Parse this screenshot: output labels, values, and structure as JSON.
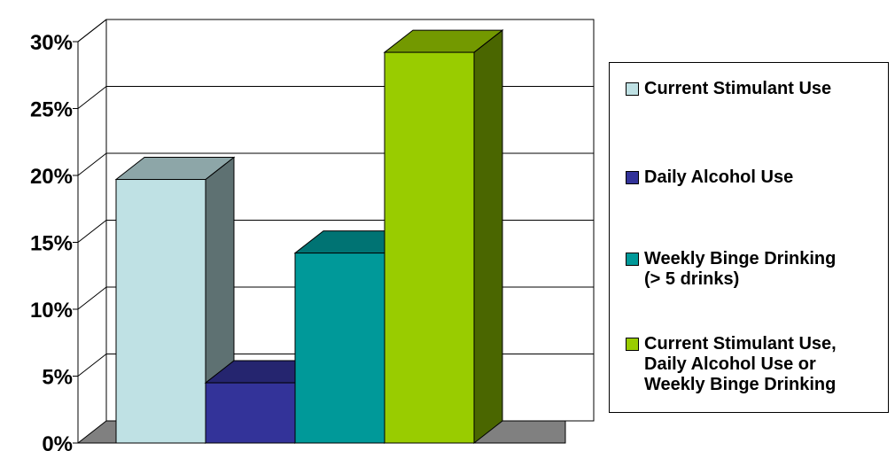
{
  "chart_data": {
    "type": "bar",
    "title": "",
    "xlabel": "",
    "ylabel": "",
    "ylim": [
      0,
      30
    ],
    "yticks": [
      "0%",
      "5%",
      "10%",
      "15%",
      "20%",
      "25%",
      "30%"
    ],
    "grid": true,
    "three_d": true,
    "legend_position": "right",
    "series": [
      {
        "name": "Current Stimulant Use",
        "value": 19.7,
        "color": "#BFE1E4",
        "top_color": "#8DA6A8",
        "side_color": "#5E7172"
      },
      {
        "name": "Daily Alcohol Use",
        "value": 4.5,
        "color": "#333399",
        "top_color": "#25256F",
        "side_color": "#1A1A4F"
      },
      {
        "name": "Weekly Binge Drinking\n(> 5 drinks)",
        "value": 14.2,
        "color": "#009999",
        "top_color": "#007373",
        "side_color": "#004F4F"
      },
      {
        "name": "Current Stimulant Use,\nDaily Alcohol Use or\nWeekly Binge Drinking",
        "value": 29.2,
        "color": "#99CC00",
        "top_color": "#739900",
        "side_color": "#4A6600"
      }
    ]
  }
}
